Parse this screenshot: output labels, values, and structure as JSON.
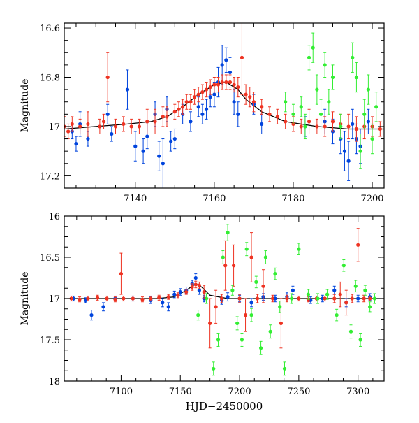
{
  "chart_data": [
    {
      "type": "scatter",
      "panel": "top",
      "title": "",
      "xlabel": "",
      "ylabel": "Magnitude",
      "xlim": [
        7122,
        7203
      ],
      "ylim": [
        17.25,
        16.58
      ],
      "y_inverted": true,
      "xticks": [
        7140,
        7160,
        7180,
        7200
      ],
      "yticks": [
        16.6,
        16.8,
        17,
        17.2
      ],
      "ytick_labels": [
        "16.6",
        "16.8",
        "17",
        "17.2"
      ],
      "model_curve": {
        "name": "model",
        "color": "#000000",
        "x": [
          7122,
          7130,
          7138,
          7144,
          7148,
          7152,
          7156,
          7160,
          7163,
          7166,
          7168,
          7172,
          7178,
          7186,
          7194,
          7203
        ],
        "y": [
          17.01,
          17.0,
          16.99,
          16.98,
          16.96,
          16.92,
          16.87,
          16.83,
          16.82,
          16.85,
          16.89,
          16.94,
          16.98,
          17.0,
          17.01,
          17.01
        ]
      },
      "series": [
        {
          "name": "blue observatory",
          "color": "#0044dd",
          "x": [
            7124,
            7125,
            7126,
            7128,
            7133,
            7134,
            7138,
            7140,
            7142,
            7143,
            7145,
            7146,
            7147,
            7148,
            7149,
            7150,
            7152,
            7154,
            7156,
            7157,
            7158,
            7159,
            7160,
            7161,
            7162,
            7163,
            7164,
            7165,
            7166,
            7170,
            7172,
            7183,
            7188,
            7190,
            7192,
            7193,
            7194,
            7195,
            7196,
            7197,
            7199
          ],
          "y": [
            17.02,
            17.07,
            16.99,
            17.05,
            16.95,
            17.03,
            16.85,
            17.08,
            17.1,
            17.04,
            16.95,
            17.12,
            17.15,
            16.93,
            17.06,
            17.05,
            16.95,
            16.98,
            16.92,
            16.95,
            16.93,
            16.88,
            16.87,
            16.82,
            16.75,
            16.73,
            16.78,
            16.9,
            16.95,
            16.91,
            16.99,
            17.0,
            16.98,
            17.02,
            17.05,
            17.1,
            17.14,
            16.99,
            17.05,
            17.08,
            16.98
          ],
          "err": [
            0.03,
            0.03,
            0.05,
            0.03,
            0.04,
            0.03,
            0.08,
            0.06,
            0.05,
            0.05,
            0.05,
            0.06,
            0.1,
            0.05,
            0.04,
            0.04,
            0.04,
            0.04,
            0.04,
            0.04,
            0.04,
            0.04,
            0.05,
            0.06,
            0.08,
            0.05,
            0.06,
            0.05,
            0.05,
            0.04,
            0.04,
            0.04,
            0.05,
            0.05,
            0.06,
            0.08,
            0.08,
            0.06,
            0.06,
            0.07,
            0.05
          ]
        },
        {
          "name": "red observatory",
          "color": "#ee3322",
          "x": [
            7122,
            7123,
            7124,
            7126,
            7128,
            7131,
            7132,
            7133,
            7135,
            7137,
            7139,
            7141,
            7143,
            7145,
            7147,
            7148,
            7150,
            7151,
            7152,
            7153,
            7154,
            7155,
            7156,
            7157,
            7158,
            7159,
            7160,
            7161,
            7162,
            7163,
            7164,
            7165,
            7166,
            7167,
            7168,
            7169,
            7170,
            7172,
            7174,
            7176,
            7178,
            7180,
            7182,
            7184,
            7186,
            7188,
            7190,
            7192,
            7194,
            7196,
            7198,
            7200,
            7202
          ],
          "y": [
            17.0,
            17.02,
            16.99,
            17.0,
            16.99,
            17.0,
            16.98,
            16.8,
            17.0,
            16.99,
            17.0,
            17.0,
            16.98,
            16.98,
            16.96,
            16.96,
            16.94,
            16.93,
            16.92,
            16.9,
            16.9,
            16.88,
            16.87,
            16.86,
            16.85,
            16.84,
            16.83,
            16.83,
            16.82,
            16.82,
            16.82,
            16.83,
            16.84,
            16.72,
            16.87,
            16.88,
            16.9,
            16.92,
            16.95,
            16.96,
            16.98,
            16.99,
            17.0,
            16.98,
            17.0,
            17.0,
            16.98,
            16.99,
            17.0,
            17.01,
            17.0,
            17.0,
            17.01
          ],
          "err": [
            0.04,
            0.03,
            0.03,
            0.03,
            0.05,
            0.03,
            0.03,
            0.1,
            0.03,
            0.03,
            0.03,
            0.03,
            0.05,
            0.05,
            0.04,
            0.04,
            0.03,
            0.03,
            0.03,
            0.03,
            0.03,
            0.03,
            0.03,
            0.03,
            0.03,
            0.03,
            0.03,
            0.03,
            0.03,
            0.03,
            0.03,
            0.03,
            0.04,
            0.15,
            0.04,
            0.04,
            0.04,
            0.03,
            0.03,
            0.03,
            0.03,
            0.03,
            0.03,
            0.05,
            0.03,
            0.04,
            0.04,
            0.04,
            0.05,
            0.05,
            0.05,
            0.04,
            0.03
          ]
        },
        {
          "name": "green observatory",
          "color": "#33ee33",
          "x": [
            7178,
            7180,
            7182,
            7183,
            7184,
            7185,
            7186,
            7187,
            7188,
            7189,
            7190,
            7192,
            7195,
            7196,
            7197,
            7198,
            7199,
            7200,
            7201
          ],
          "y": [
            16.9,
            16.95,
            16.92,
            17.0,
            16.72,
            16.68,
            16.85,
            16.95,
            16.75,
            16.9,
            16.8,
            17.0,
            16.72,
            16.8,
            17.1,
            16.95,
            16.85,
            17.05,
            16.92
          ],
          "err": [
            0.04,
            0.04,
            0.04,
            0.05,
            0.05,
            0.06,
            0.06,
            0.06,
            0.05,
            0.05,
            0.05,
            0.05,
            0.06,
            0.06,
            0.07,
            0.06,
            0.06,
            0.06,
            0.06
          ]
        }
      ]
    },
    {
      "type": "scatter",
      "panel": "bottom",
      "title": "",
      "xlabel": "HJD−2450000",
      "ylabel": "Magnitude",
      "xlim": [
        7052,
        7322
      ],
      "ylim": [
        18,
        16
      ],
      "y_inverted": true,
      "xticks": [
        7100,
        7150,
        7200,
        7250,
        7300
      ],
      "yticks": [
        16,
        16.5,
        17,
        17.5,
        18
      ],
      "ytick_labels": [
        "16",
        "16.5",
        "17",
        "17.5",
        "18"
      ],
      "model_curve": {
        "name": "model",
        "color": "#000000",
        "x": [
          7052,
          7130,
          7145,
          7155,
          7163,
          7168,
          7175,
          7190,
          7322
        ],
        "y": [
          17.0,
          17.0,
          16.98,
          16.9,
          16.82,
          16.86,
          16.96,
          17.0,
          17.0
        ]
      },
      "series": [
        {
          "name": "blue observatory",
          "color": "#0044dd",
          "x": [
            7060,
            7070,
            7075,
            7085,
            7095,
            7110,
            7125,
            7135,
            7140,
            7145,
            7150,
            7155,
            7160,
            7163,
            7166,
            7170,
            7185,
            7190,
            7200,
            7210,
            7220,
            7230,
            7240,
            7245,
            7260,
            7270,
            7280,
            7290,
            7300,
            7310
          ],
          "y": [
            17.0,
            17.02,
            17.2,
            17.1,
            17.0,
            17.0,
            17.02,
            17.05,
            17.1,
            16.95,
            16.92,
            16.9,
            16.82,
            16.75,
            16.9,
            17.0,
            17.02,
            16.98,
            17.0,
            17.05,
            16.98,
            17.0,
            16.98,
            16.9,
            17.02,
            17.0,
            16.9,
            17.05,
            17.0,
            16.98
          ],
          "err": [
            0.03,
            0.03,
            0.06,
            0.05,
            0.03,
            0.03,
            0.04,
            0.05,
            0.05,
            0.04,
            0.04,
            0.04,
            0.04,
            0.05,
            0.05,
            0.04,
            0.05,
            0.05,
            0.04,
            0.05,
            0.04,
            0.04,
            0.05,
            0.05,
            0.04,
            0.04,
            0.05,
            0.05,
            0.04,
            0.04
          ]
        },
        {
          "name": "red observatory",
          "color": "#ee3322",
          "x": [
            7058,
            7065,
            7072,
            7080,
            7088,
            7095,
            7100,
            7102,
            7110,
            7118,
            7125,
            7132,
            7140,
            7148,
            7155,
            7160,
            7163,
            7166,
            7170,
            7175,
            7180,
            7185,
            7188,
            7195,
            7200,
            7205,
            7210,
            7215,
            7220,
            7228,
            7235,
            7240,
            7250,
            7258,
            7265,
            7272,
            7280,
            7285,
            7290,
            7295,
            7300,
            7305,
            7310
          ],
          "y": [
            17.0,
            17.01,
            17.0,
            16.99,
            17.0,
            17.01,
            16.7,
            17.0,
            17.0,
            17.01,
            17.0,
            16.99,
            16.98,
            16.96,
            16.92,
            16.86,
            16.83,
            16.84,
            16.92,
            17.3,
            17.1,
            17.0,
            16.6,
            16.6,
            17.0,
            17.2,
            16.5,
            17.0,
            16.85,
            17.0,
            17.3,
            17.0,
            17.0,
            17.01,
            17.0,
            17.0,
            17.0,
            16.95,
            17.05,
            17.0,
            16.35,
            17.0,
            17.0
          ],
          "err": [
            0.03,
            0.03,
            0.03,
            0.03,
            0.03,
            0.03,
            0.25,
            0.03,
            0.03,
            0.03,
            0.03,
            0.03,
            0.03,
            0.03,
            0.03,
            0.04,
            0.04,
            0.04,
            0.08,
            0.3,
            0.2,
            0.05,
            0.3,
            0.25,
            0.05,
            0.2,
            0.3,
            0.05,
            0.2,
            0.04,
            0.3,
            0.04,
            0.03,
            0.03,
            0.03,
            0.03,
            0.05,
            0.15,
            0.15,
            0.05,
            0.2,
            0.04,
            0.03
          ]
        },
        {
          "name": "green observatory",
          "color": "#33ee33",
          "x": [
            7165,
            7172,
            7178,
            7182,
            7186,
            7190,
            7194,
            7198,
            7202,
            7206,
            7210,
            7214,
            7218,
            7222,
            7226,
            7230,
            7234,
            7238,
            7244,
            7250,
            7258,
            7266,
            7274,
            7282,
            7288,
            7294,
            7298,
            7302,
            7306,
            7310,
            7314
          ],
          "y": [
            17.2,
            17.0,
            17.85,
            17.5,
            16.5,
            16.2,
            16.9,
            17.3,
            17.5,
            16.4,
            17.2,
            16.8,
            17.6,
            16.5,
            17.4,
            16.7,
            17.1,
            17.85,
            17.0,
            16.4,
            16.95,
            17.0,
            16.95,
            17.2,
            16.6,
            17.4,
            16.85,
            17.5,
            16.9,
            17.1,
            17.0
          ],
          "err": [
            0.06,
            0.06,
            0.08,
            0.08,
            0.08,
            0.1,
            0.06,
            0.08,
            0.08,
            0.08,
            0.08,
            0.07,
            0.08,
            0.08,
            0.08,
            0.07,
            0.07,
            0.08,
            0.06,
            0.07,
            0.06,
            0.06,
            0.06,
            0.07,
            0.07,
            0.08,
            0.07,
            0.08,
            0.06,
            0.06,
            0.06
          ]
        }
      ]
    }
  ]
}
